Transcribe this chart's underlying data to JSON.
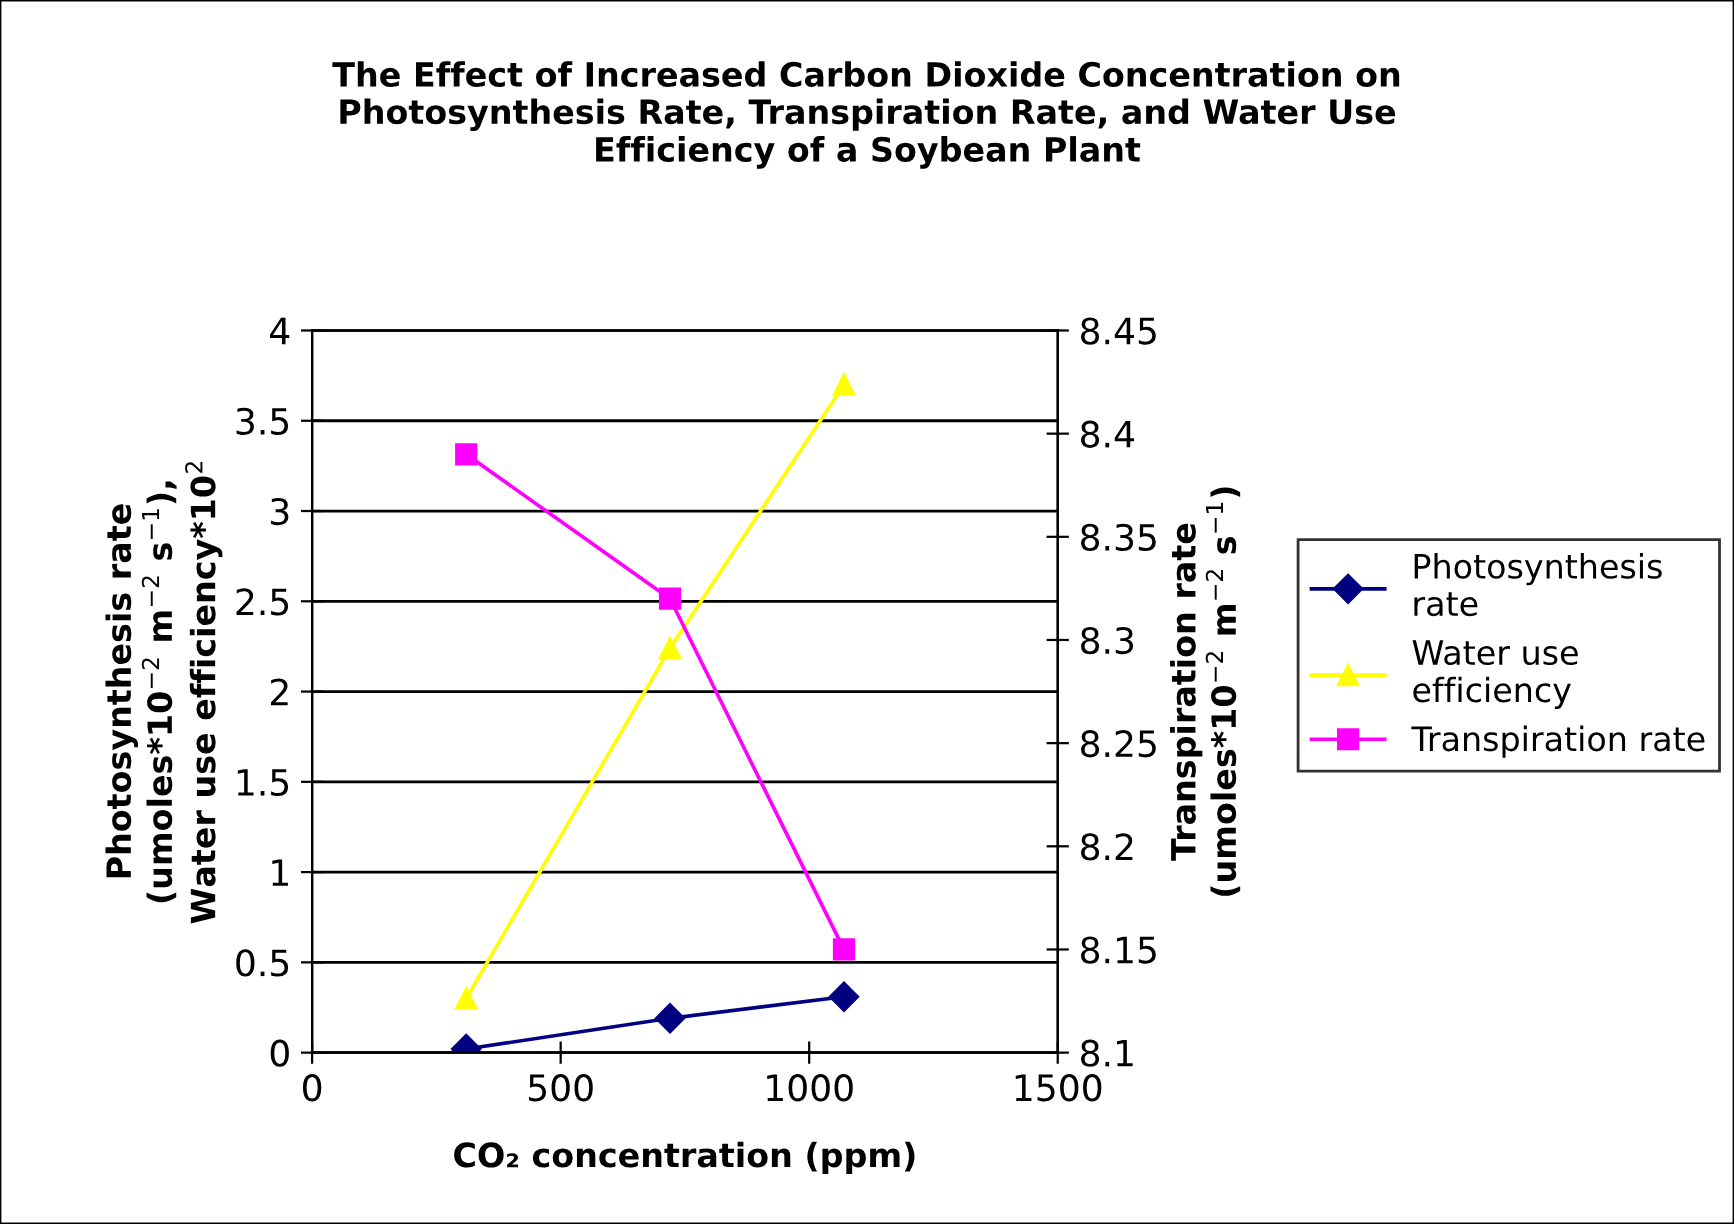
{
  "chart_data": {
    "type": "line",
    "title": "The Effect of Increased Carbon Dioxide Concentration on\nPhotosynthesis Rate, Transpiration Rate, and Water Use\nEfficiency of a Soybean Plant",
    "xlabel": "CO₂ concentration (ppm)",
    "ylabel": "Photosynthesis rate\n(umoles*10$^{−2}$ m$^{−2}$ s$^{−1}$),\nWater use efficiency*10$^{2}$",
    "y2label": "Transpiration rate\n(umoles*10$^{−2}$ m$^{−2}$ s$^{−1}$)",
    "x": [
      310,
      720,
      1070
    ],
    "series": [
      {
        "name": "Photosynthesis\nrate",
        "color": "#000080",
        "marker": "diamond",
        "values": [
          0.02,
          0.19,
          0.31
        ]
      },
      {
        "name": "Water use\nefficiency",
        "color": "#ffff00",
        "marker": "triangle",
        "values": [
          0.3,
          2.24,
          3.7
        ]
      },
      {
        "name": "Transpiration rate",
        "color": "#ff00ff",
        "marker": "square",
        "axis": "y2",
        "values": [
          8.39,
          8.32,
          8.15
        ]
      }
    ],
    "xlim": [
      0,
      1500
    ],
    "xticks": [
      0,
      500,
      1000,
      1500
    ],
    "ylim": [
      0,
      4
    ],
    "yticks": [
      0,
      0.5,
      1,
      1.5,
      2,
      2.5,
      3,
      3.5,
      4
    ],
    "y2lim": [
      8.1,
      8.45
    ],
    "y2ticks": [
      8.1,
      8.15,
      8.2,
      8.25,
      8.3,
      8.35,
      8.4,
      8.45
    ],
    "grid": "y",
    "legend": "right",
    "line_style": "solid"
  }
}
